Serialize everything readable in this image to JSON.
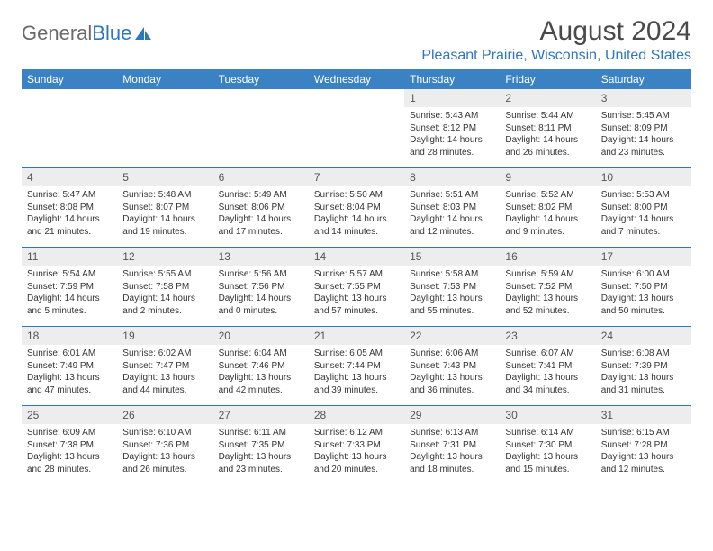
{
  "logo": {
    "part1": "General",
    "part2": "Blue"
  },
  "title": "August 2024",
  "location": "Pleasant Prairie, Wisconsin, United States",
  "colors": {
    "header_bg": "#3a82c4",
    "accent": "#2f77bb",
    "daynum_bg": "#ededed",
    "text": "#333333",
    "logo_gray": "#6a6a6a"
  },
  "fonts": {
    "title_size_pt": 30,
    "location_size_pt": 16,
    "dayheader_size_pt": 12,
    "daynum_size_pt": 12,
    "body_size_pt": 10
  },
  "day_headers": [
    "Sunday",
    "Monday",
    "Tuesday",
    "Wednesday",
    "Thursday",
    "Friday",
    "Saturday"
  ],
  "weeks": [
    [
      {
        "n": "",
        "lines": []
      },
      {
        "n": "",
        "lines": []
      },
      {
        "n": "",
        "lines": []
      },
      {
        "n": "",
        "lines": []
      },
      {
        "n": "1",
        "lines": [
          "Sunrise: 5:43 AM",
          "Sunset: 8:12 PM",
          "Daylight: 14 hours",
          "and 28 minutes."
        ]
      },
      {
        "n": "2",
        "lines": [
          "Sunrise: 5:44 AM",
          "Sunset: 8:11 PM",
          "Daylight: 14 hours",
          "and 26 minutes."
        ]
      },
      {
        "n": "3",
        "lines": [
          "Sunrise: 5:45 AM",
          "Sunset: 8:09 PM",
          "Daylight: 14 hours",
          "and 23 minutes."
        ]
      }
    ],
    [
      {
        "n": "4",
        "lines": [
          "Sunrise: 5:47 AM",
          "Sunset: 8:08 PM",
          "Daylight: 14 hours",
          "and 21 minutes."
        ]
      },
      {
        "n": "5",
        "lines": [
          "Sunrise: 5:48 AM",
          "Sunset: 8:07 PM",
          "Daylight: 14 hours",
          "and 19 minutes."
        ]
      },
      {
        "n": "6",
        "lines": [
          "Sunrise: 5:49 AM",
          "Sunset: 8:06 PM",
          "Daylight: 14 hours",
          "and 17 minutes."
        ]
      },
      {
        "n": "7",
        "lines": [
          "Sunrise: 5:50 AM",
          "Sunset: 8:04 PM",
          "Daylight: 14 hours",
          "and 14 minutes."
        ]
      },
      {
        "n": "8",
        "lines": [
          "Sunrise: 5:51 AM",
          "Sunset: 8:03 PM",
          "Daylight: 14 hours",
          "and 12 minutes."
        ]
      },
      {
        "n": "9",
        "lines": [
          "Sunrise: 5:52 AM",
          "Sunset: 8:02 PM",
          "Daylight: 14 hours",
          "and 9 minutes."
        ]
      },
      {
        "n": "10",
        "lines": [
          "Sunrise: 5:53 AM",
          "Sunset: 8:00 PM",
          "Daylight: 14 hours",
          "and 7 minutes."
        ]
      }
    ],
    [
      {
        "n": "11",
        "lines": [
          "Sunrise: 5:54 AM",
          "Sunset: 7:59 PM",
          "Daylight: 14 hours",
          "and 5 minutes."
        ]
      },
      {
        "n": "12",
        "lines": [
          "Sunrise: 5:55 AM",
          "Sunset: 7:58 PM",
          "Daylight: 14 hours",
          "and 2 minutes."
        ]
      },
      {
        "n": "13",
        "lines": [
          "Sunrise: 5:56 AM",
          "Sunset: 7:56 PM",
          "Daylight: 14 hours",
          "and 0 minutes."
        ]
      },
      {
        "n": "14",
        "lines": [
          "Sunrise: 5:57 AM",
          "Sunset: 7:55 PM",
          "Daylight: 13 hours",
          "and 57 minutes."
        ]
      },
      {
        "n": "15",
        "lines": [
          "Sunrise: 5:58 AM",
          "Sunset: 7:53 PM",
          "Daylight: 13 hours",
          "and 55 minutes."
        ]
      },
      {
        "n": "16",
        "lines": [
          "Sunrise: 5:59 AM",
          "Sunset: 7:52 PM",
          "Daylight: 13 hours",
          "and 52 minutes."
        ]
      },
      {
        "n": "17",
        "lines": [
          "Sunrise: 6:00 AM",
          "Sunset: 7:50 PM",
          "Daylight: 13 hours",
          "and 50 minutes."
        ]
      }
    ],
    [
      {
        "n": "18",
        "lines": [
          "Sunrise: 6:01 AM",
          "Sunset: 7:49 PM",
          "Daylight: 13 hours",
          "and 47 minutes."
        ]
      },
      {
        "n": "19",
        "lines": [
          "Sunrise: 6:02 AM",
          "Sunset: 7:47 PM",
          "Daylight: 13 hours",
          "and 44 minutes."
        ]
      },
      {
        "n": "20",
        "lines": [
          "Sunrise: 6:04 AM",
          "Sunset: 7:46 PM",
          "Daylight: 13 hours",
          "and 42 minutes."
        ]
      },
      {
        "n": "21",
        "lines": [
          "Sunrise: 6:05 AM",
          "Sunset: 7:44 PM",
          "Daylight: 13 hours",
          "and 39 minutes."
        ]
      },
      {
        "n": "22",
        "lines": [
          "Sunrise: 6:06 AM",
          "Sunset: 7:43 PM",
          "Daylight: 13 hours",
          "and 36 minutes."
        ]
      },
      {
        "n": "23",
        "lines": [
          "Sunrise: 6:07 AM",
          "Sunset: 7:41 PM",
          "Daylight: 13 hours",
          "and 34 minutes."
        ]
      },
      {
        "n": "24",
        "lines": [
          "Sunrise: 6:08 AM",
          "Sunset: 7:39 PM",
          "Daylight: 13 hours",
          "and 31 minutes."
        ]
      }
    ],
    [
      {
        "n": "25",
        "lines": [
          "Sunrise: 6:09 AM",
          "Sunset: 7:38 PM",
          "Daylight: 13 hours",
          "and 28 minutes."
        ]
      },
      {
        "n": "26",
        "lines": [
          "Sunrise: 6:10 AM",
          "Sunset: 7:36 PM",
          "Daylight: 13 hours",
          "and 26 minutes."
        ]
      },
      {
        "n": "27",
        "lines": [
          "Sunrise: 6:11 AM",
          "Sunset: 7:35 PM",
          "Daylight: 13 hours",
          "and 23 minutes."
        ]
      },
      {
        "n": "28",
        "lines": [
          "Sunrise: 6:12 AM",
          "Sunset: 7:33 PM",
          "Daylight: 13 hours",
          "and 20 minutes."
        ]
      },
      {
        "n": "29",
        "lines": [
          "Sunrise: 6:13 AM",
          "Sunset: 7:31 PM",
          "Daylight: 13 hours",
          "and 18 minutes."
        ]
      },
      {
        "n": "30",
        "lines": [
          "Sunrise: 6:14 AM",
          "Sunset: 7:30 PM",
          "Daylight: 13 hours",
          "and 15 minutes."
        ]
      },
      {
        "n": "31",
        "lines": [
          "Sunrise: 6:15 AM",
          "Sunset: 7:28 PM",
          "Daylight: 13 hours",
          "and 12 minutes."
        ]
      }
    ]
  ]
}
